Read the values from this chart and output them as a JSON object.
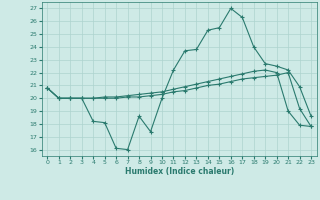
{
  "xlabel": "Humidex (Indice chaleur)",
  "xlim": [
    -0.5,
    23.5
  ],
  "ylim": [
    15.5,
    27.5
  ],
  "xticks": [
    0,
    1,
    2,
    3,
    4,
    5,
    6,
    7,
    8,
    9,
    10,
    11,
    12,
    13,
    14,
    15,
    16,
    17,
    18,
    19,
    20,
    21,
    22,
    23
  ],
  "yticks": [
    16,
    17,
    18,
    19,
    20,
    21,
    22,
    23,
    24,
    25,
    26,
    27
  ],
  "bg_color": "#ceeae6",
  "line_color": "#2a7a6e",
  "grid_color": "#aed4ce",
  "line1": {
    "x": [
      0,
      1,
      2,
      3,
      4,
      5,
      6,
      7,
      8,
      9,
      10,
      11,
      12,
      13,
      14,
      15,
      16,
      17,
      18,
      19,
      20,
      21,
      22,
      23
    ],
    "y": [
      20.8,
      20.0,
      20.0,
      20.0,
      18.2,
      18.1,
      16.1,
      16.0,
      18.6,
      17.4,
      20.0,
      22.2,
      23.7,
      23.8,
      25.3,
      25.5,
      27.0,
      26.3,
      24.0,
      22.7,
      22.5,
      22.2,
      20.9,
      18.6
    ]
  },
  "line2": {
    "x": [
      0,
      1,
      2,
      3,
      4,
      5,
      6,
      7,
      8,
      9,
      10,
      11,
      12,
      13,
      14,
      15,
      16,
      17,
      18,
      19,
      20,
      21,
      22,
      23
    ],
    "y": [
      20.8,
      20.0,
      20.0,
      20.0,
      20.0,
      20.1,
      20.1,
      20.2,
      20.3,
      20.4,
      20.5,
      20.7,
      20.9,
      21.1,
      21.3,
      21.5,
      21.7,
      21.9,
      22.1,
      22.2,
      22.0,
      19.0,
      17.9,
      17.8
    ]
  },
  "line3": {
    "x": [
      0,
      1,
      2,
      3,
      4,
      5,
      6,
      7,
      8,
      9,
      10,
      11,
      12,
      13,
      14,
      15,
      16,
      17,
      18,
      19,
      20,
      21,
      22,
      23
    ],
    "y": [
      20.8,
      20.0,
      20.0,
      20.0,
      20.0,
      20.0,
      20.0,
      20.1,
      20.1,
      20.2,
      20.3,
      20.5,
      20.6,
      20.8,
      21.0,
      21.1,
      21.3,
      21.5,
      21.6,
      21.7,
      21.8,
      22.0,
      19.2,
      17.8
    ]
  }
}
